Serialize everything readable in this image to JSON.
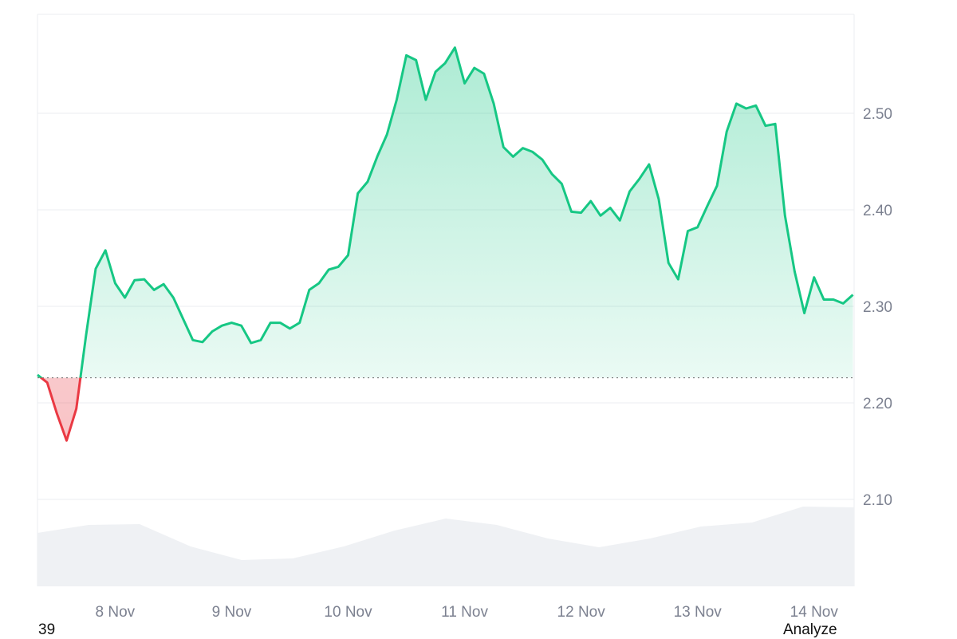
{
  "chart_data": {
    "type": "area",
    "title": "",
    "xlabel": "",
    "ylabel": "",
    "ylim": [
      2.0,
      2.605
    ],
    "y_ticks": [
      "2.10",
      "2.20",
      "2.30",
      "2.40",
      "2.50"
    ],
    "x_ticks": [
      "8 Nov",
      "9 Nov",
      "10 Nov",
      "11 Nov",
      "12 Nov",
      "13 Nov",
      "14 Nov"
    ],
    "x_range": [
      "2024-11-07T08:00",
      "2024-11-14T08:15"
    ],
    "baseline": 2.226,
    "grid": "horizontal",
    "colors": {
      "up": "#16c784",
      "down": "#ea3943",
      "grid": "#ebedf0",
      "volume": "#eff1f4",
      "tick": "#7c8190"
    },
    "series": [
      {
        "start": "2024-11-07T08:00",
        "interval_hours": 2,
        "values": [
          2.229,
          2.221,
          2.189,
          2.161,
          2.194,
          2.27,
          2.339,
          2.358,
          2.324,
          2.309,
          2.327,
          2.328,
          2.317,
          2.323,
          2.309,
          2.287,
          2.265,
          2.263,
          2.274,
          2.28,
          2.283,
          2.28,
          2.262,
          2.265,
          2.283,
          2.283,
          2.277,
          2.283,
          2.317,
          2.324,
          2.338,
          2.341,
          2.353,
          2.417,
          2.429,
          2.455,
          2.478,
          2.514,
          2.56,
          2.555,
          2.514,
          2.543,
          2.552,
          2.568,
          2.531,
          2.547,
          2.541,
          2.51,
          2.465,
          2.455,
          2.464,
          2.46,
          2.452,
          2.437,
          2.427,
          2.398,
          2.397,
          2.409,
          2.394,
          2.402,
          2.389,
          2.419,
          2.432,
          2.447,
          2.411,
          2.345,
          2.328,
          2.378,
          2.382,
          2.404,
          2.425,
          2.481,
          2.51,
          2.505,
          2.508,
          2.487,
          2.489,
          2.394,
          2.336,
          2.293,
          2.33,
          2.307,
          2.307,
          2.303,
          2.312
        ]
      }
    ],
    "volume_relative": [
      67,
      77,
      78,
      50,
      33,
      35,
      50,
      70,
      85,
      77,
      60,
      49,
      60,
      75,
      80,
      100,
      99
    ]
  },
  "footer": {
    "left_text": "39",
    "right_text": "Analyze"
  }
}
